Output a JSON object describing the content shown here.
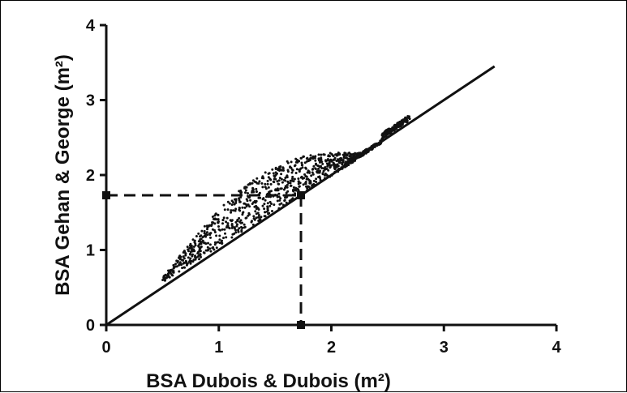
{
  "chart_data": {
    "type": "scatter",
    "title": "",
    "xlabel": "BSA Dubois & Dubois (m²)",
    "ylabel": "BSA Gehan & George (m²)",
    "xlim": [
      0,
      4
    ],
    "ylim": [
      0,
      4
    ],
    "x_ticks": [
      "0",
      "1",
      "2",
      "3",
      "4"
    ],
    "y_ticks": [
      "0",
      "1",
      "2",
      "3",
      "4"
    ],
    "grid": false,
    "identity_line": {
      "x": [
        0,
        3.45
      ],
      "y": [
        0,
        3.45
      ]
    },
    "reference_point": {
      "x": 1.73,
      "y": 1.73
    },
    "scatter_cloud": {
      "point_count": 1200,
      "x_range": [
        0.5,
        2.7
      ],
      "y_range": [
        0.62,
        2.75
      ],
      "relation": "points lie on or above the identity line; largest spread near x = 1.0–1.5"
    },
    "colors": {
      "marks": "#111111",
      "background": "#ffffff"
    }
  }
}
